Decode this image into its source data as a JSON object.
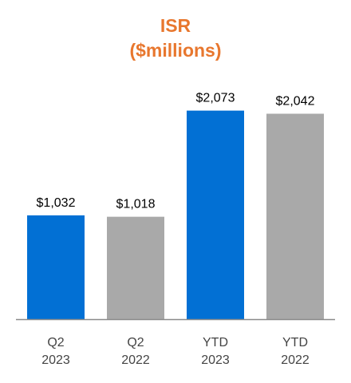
{
  "chart_data": {
    "type": "bar",
    "title": [
      "ISR",
      "($millions)"
    ],
    "categories": [
      [
        "Q2",
        "2023"
      ],
      [
        "Q2",
        "2022"
      ],
      [
        "YTD",
        "2023"
      ],
      [
        "YTD",
        "2022"
      ]
    ],
    "values": [
      1032,
      1018,
      2073,
      2042
    ],
    "value_labels": [
      "$1,032",
      "$1,018",
      "$2,073",
      "$2,042"
    ],
    "bar_colors": [
      "#0270d4",
      "#a9a9a9",
      "#0270d4",
      "#a9a9a9"
    ],
    "ylim": [
      0,
      2300
    ],
    "grid": false,
    "legend": "none",
    "xlabel": "",
    "ylabel": ""
  },
  "colors": {
    "title": "#e8772e",
    "axis": "#8a8a8a",
    "value_label": "#000000",
    "category_label": "#444444",
    "current_period": "#0270d4",
    "prior_period": "#a9a9a9"
  }
}
